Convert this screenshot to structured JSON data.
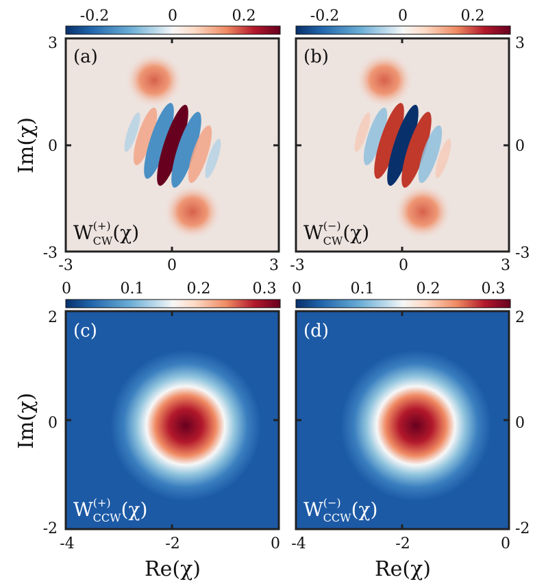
{
  "chart_data": [
    {
      "type": "heatmap",
      "panel_label": "(a)",
      "function_label": {
        "base": "W",
        "sub": "CW",
        "sup": "(+)",
        "arg": "(χ)"
      },
      "colorbar": {
        "ticks": [
          "-0.2",
          "0",
          "0.2"
        ],
        "range": [
          -0.3,
          0.3
        ]
      },
      "xlim": [
        -3,
        3
      ],
      "ylim": [
        -3,
        3
      ],
      "xticks": [
        "-3",
        "0",
        "3"
      ],
      "yticks": [
        "3",
        "0",
        "-3"
      ],
      "ylabel": "Im(χ)",
      "xlabel": "",
      "center_sign": -1
    },
    {
      "type": "heatmap",
      "panel_label": "(b)",
      "function_label": {
        "base": "W",
        "sub": "CW",
        "sup": "(−)",
        "arg": "(χ)"
      },
      "colorbar": {
        "ticks": [
          "-0.2",
          "0",
          "0.2"
        ],
        "range": [
          -0.3,
          0.3
        ]
      },
      "xlim": [
        -3,
        3
      ],
      "ylim": [
        -3,
        3
      ],
      "xticks": [
        "-3",
        "0",
        "3"
      ],
      "yticks": [
        "3",
        "0",
        "-3"
      ],
      "ylabel": "",
      "xlabel": "",
      "center_sign": 1
    },
    {
      "type": "heatmap",
      "panel_label": "(c)",
      "function_label": {
        "base": "W",
        "sub": "CCW",
        "sup": "(+)",
        "arg": "(χ)"
      },
      "colorbar": {
        "ticks": [
          "0",
          "0.1",
          "0.2",
          "0.3"
        ],
        "range": [
          0,
          0.32
        ]
      },
      "xlim": [
        -4,
        0
      ],
      "ylim": [
        -2,
        2
      ],
      "xticks": [
        "-4",
        "-2",
        "0"
      ],
      "yticks": [
        "2",
        "0",
        "-2"
      ],
      "ylabel": "Im(χ)",
      "xlabel": "Re(χ)",
      "peak": {
        "x": -1.75,
        "y": -0.1,
        "value": 0.32
      }
    },
    {
      "type": "heatmap",
      "panel_label": "(d)",
      "function_label": {
        "base": "W",
        "sub": "CCW",
        "sup": "(−)",
        "arg": "(χ)"
      },
      "colorbar": {
        "ticks": [
          "0",
          "0.1",
          "0.2",
          "0.3"
        ],
        "range": [
          0,
          0.32
        ]
      },
      "xlim": [
        -4,
        0
      ],
      "ylim": [
        -2,
        2
      ],
      "xticks": [
        "-4",
        "-2",
        "0"
      ],
      "yticks": [
        "2",
        "0",
        "-2"
      ],
      "ylabel": "",
      "xlabel": "Re(χ)",
      "peak": {
        "x": -1.75,
        "y": -0.1,
        "value": 0.32
      }
    }
  ],
  "colormap": [
    "#08306b",
    "#2166ac",
    "#6aaed6",
    "#d1e5f0",
    "#f7f7f7",
    "#fddbc7",
    "#ef8a62",
    "#d6604d",
    "#b2182b",
    "#67001f"
  ]
}
